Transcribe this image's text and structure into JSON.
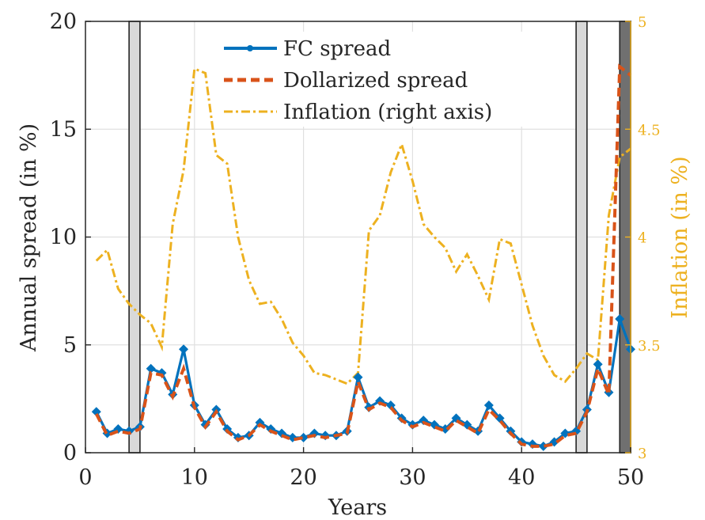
{
  "chart_data": {
    "type": "line",
    "title": "",
    "xlabel": "Years",
    "ylabel": "Annual spread (in %)",
    "y2label": "Inflation (in %)",
    "xlim": [
      0,
      50
    ],
    "ylim": [
      0,
      20
    ],
    "y2lim": [
      3,
      5
    ],
    "grid": true,
    "legend_position": "top-center",
    "x_ticks": [
      0,
      10,
      20,
      30,
      40,
      50
    ],
    "y_ticks": [
      0,
      5,
      10,
      15,
      20
    ],
    "y2_ticks": [
      3,
      3.5,
      4,
      4.5,
      5
    ],
    "y2_tick_labels": [
      "3",
      "3.5",
      "4",
      "4.5",
      "5"
    ],
    "shaded_regions": [
      {
        "x0": 4,
        "x1": 5,
        "shade": "light"
      },
      {
        "x0": 45,
        "x1": 46,
        "shade": "light"
      },
      {
        "x0": 49,
        "x1": 50,
        "shade": "dark"
      }
    ],
    "colors": {
      "fc_spread": "#0072bd",
      "dollarized_spread": "#d95319",
      "inflation": "#edb120",
      "right_axis": "#edb120",
      "shade_light": "#d9d9d9",
      "shade_dark": "#707070",
      "grid": "#e0e0e0"
    },
    "series": [
      {
        "name": "FC spread",
        "axis": "left",
        "x": [
          1,
          2,
          3,
          4,
          5,
          6,
          7,
          8,
          9,
          10,
          11,
          12,
          13,
          14,
          15,
          16,
          17,
          18,
          19,
          20,
          21,
          22,
          23,
          24,
          25,
          26,
          27,
          28,
          29,
          30,
          31,
          32,
          33,
          34,
          35,
          36,
          37,
          38,
          39,
          40,
          41,
          42,
          43,
          44,
          45,
          46,
          47,
          48,
          49,
          50
        ],
        "values": [
          1.9,
          0.9,
          1.1,
          1.0,
          1.2,
          3.9,
          3.7,
          2.7,
          4.8,
          2.2,
          1.3,
          2.0,
          1.1,
          0.7,
          0.8,
          1.4,
          1.1,
          0.9,
          0.7,
          0.7,
          0.9,
          0.8,
          0.8,
          1.0,
          3.5,
          2.1,
          2.4,
          2.2,
          1.6,
          1.3,
          1.5,
          1.3,
          1.1,
          1.6,
          1.3,
          1.0,
          2.2,
          1.6,
          1.0,
          0.5,
          0.4,
          0.3,
          0.5,
          0.9,
          1.0,
          2.0,
          4.1,
          2.8,
          6.2,
          4.8
        ]
      },
      {
        "name": "Dollarized spread",
        "axis": "left",
        "x": [
          1,
          2,
          3,
          4,
          5,
          6,
          7,
          8,
          9,
          10,
          11,
          12,
          13,
          14,
          15,
          16,
          17,
          18,
          19,
          20,
          21,
          22,
          23,
          24,
          25,
          26,
          27,
          28,
          29,
          30,
          31,
          32,
          33,
          34,
          35,
          36,
          37,
          38,
          39,
          40,
          41,
          42,
          43,
          44,
          45,
          46,
          47,
          48,
          49,
          50
        ],
        "values": [
          1.8,
          0.8,
          1.0,
          0.9,
          1.1,
          3.7,
          3.6,
          2.6,
          3.9,
          2.1,
          1.2,
          1.9,
          1.0,
          0.6,
          0.8,
          1.3,
          1.0,
          0.8,
          0.6,
          0.7,
          0.8,
          0.7,
          0.8,
          0.9,
          3.3,
          2.0,
          2.3,
          2.1,
          1.5,
          1.2,
          1.4,
          1.2,
          1.0,
          1.5,
          1.2,
          0.9,
          2.0,
          1.5,
          0.9,
          0.4,
          0.3,
          0.3,
          0.4,
          0.8,
          0.9,
          1.9,
          3.9,
          2.7,
          17.9,
          17.5
        ]
      },
      {
        "name": "Inflation (right axis)",
        "axis": "right",
        "x": [
          1,
          2,
          3,
          4,
          5,
          6,
          7,
          8,
          9,
          10,
          11,
          12,
          13,
          14,
          15,
          16,
          17,
          18,
          19,
          20,
          21,
          22,
          23,
          24,
          25,
          26,
          27,
          28,
          29,
          30,
          31,
          32,
          33,
          34,
          35,
          36,
          37,
          38,
          39,
          40,
          41,
          42,
          43,
          44,
          45,
          46,
          47,
          48,
          49,
          50
        ],
        "values": [
          3.89,
          3.94,
          3.76,
          3.69,
          3.64,
          3.6,
          3.49,
          4.06,
          4.31,
          4.78,
          4.76,
          4.38,
          4.34,
          4.0,
          3.8,
          3.69,
          3.7,
          3.62,
          3.51,
          3.45,
          3.37,
          3.36,
          3.34,
          3.32,
          3.37,
          4.03,
          4.1,
          4.3,
          4.43,
          4.26,
          4.06,
          4.0,
          3.95,
          3.84,
          3.92,
          3.82,
          3.71,
          3.99,
          3.97,
          3.78,
          3.59,
          3.45,
          3.36,
          3.33,
          3.39,
          3.46,
          3.43,
          4.1,
          4.37,
          4.41
        ]
      }
    ]
  }
}
